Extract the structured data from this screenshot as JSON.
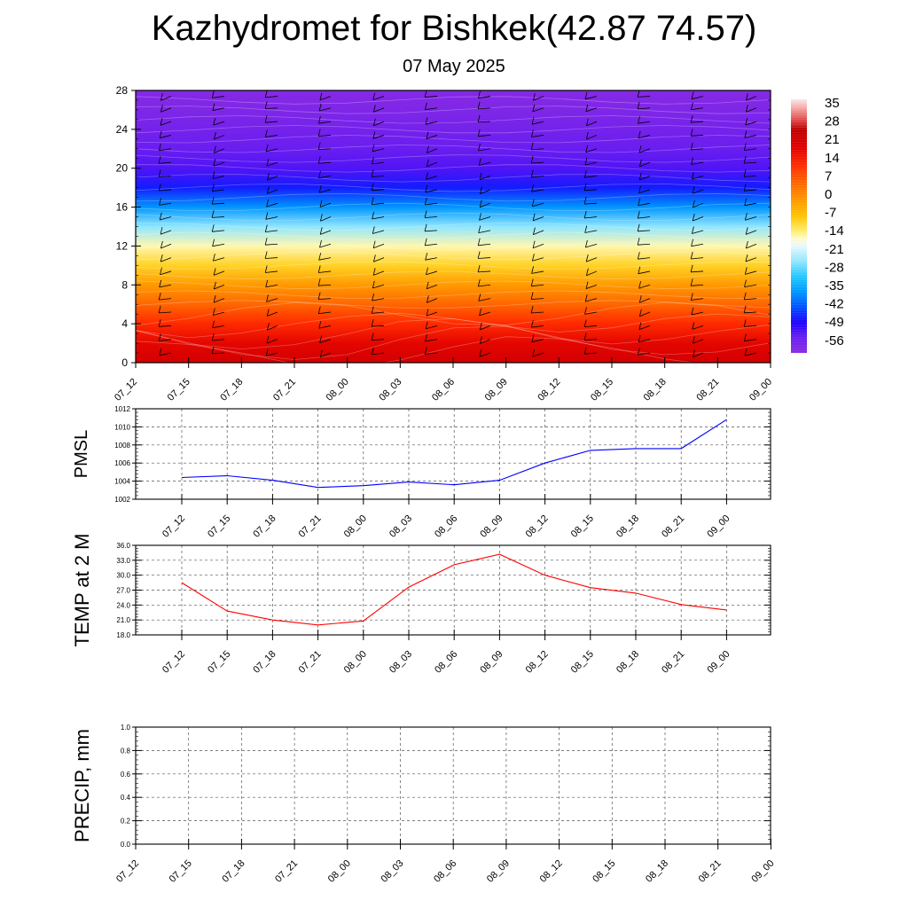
{
  "header": {
    "title": "Kazhydromet for Bishkek(42.87 74.57)",
    "subtitle": "07 May 2025"
  },
  "chart_data": [
    {
      "name": "cross-section",
      "type": "heatmap",
      "times": [
        "07_12",
        "07_15",
        "07_18",
        "07_21",
        "08_00",
        "08_03",
        "08_06",
        "08_09",
        "08_12",
        "08_15",
        "08_18",
        "08_21",
        "09_00"
      ],
      "y_ticks": [
        0,
        4,
        8,
        12,
        16,
        20,
        24,
        28
      ],
      "ylim": [
        0,
        28
      ],
      "colorbar_labels": [
        35,
        28,
        21,
        14,
        7,
        0,
        -7,
        -14,
        -21,
        -28,
        -35,
        -42,
        -49,
        -56
      ],
      "colorbar_range": [
        -60,
        40
      ],
      "color_scale": [
        {
          "v": -60,
          "c": "#8a2be2"
        },
        {
          "v": -54,
          "c": "#6a1ef0"
        },
        {
          "v": -48,
          "c": "#1e00ff"
        },
        {
          "v": -42,
          "c": "#0050ff"
        },
        {
          "v": -36,
          "c": "#0096ff"
        },
        {
          "v": -30,
          "c": "#20c8ff"
        },
        {
          "v": -24,
          "c": "#90e6ff"
        },
        {
          "v": -18,
          "c": "#e6f8ff"
        },
        {
          "v": -15,
          "c": "#fffbd0"
        },
        {
          "v": -12,
          "c": "#ffee70"
        },
        {
          "v": -6,
          "c": "#ffc400"
        },
        {
          "v": 0,
          "c": "#ff9a00"
        },
        {
          "v": 7,
          "c": "#ff6600"
        },
        {
          "v": 14,
          "c": "#ff2a00"
        },
        {
          "v": 21,
          "c": "#e00000"
        },
        {
          "v": 28,
          "c": "#c00000"
        },
        {
          "v": 33,
          "c": "#e86060"
        },
        {
          "v": 37,
          "c": "#f5b0b0"
        },
        {
          "v": 40,
          "c": "#fce6e6"
        }
      ],
      "profile_levels": [
        0,
        2,
        4,
        6,
        8,
        10,
        12,
        14,
        16,
        18,
        20,
        22,
        24,
        26,
        28
      ],
      "profile_values": [
        24,
        20,
        14,
        7,
        0,
        -8,
        -14,
        -24,
        -36,
        -46,
        -52,
        -54,
        -56,
        -58,
        -59
      ],
      "surface_temp": [
        28.5,
        22.8,
        21.0,
        20.0,
        20.8,
        27.6,
        32.1,
        34.2,
        30.0,
        27.5,
        26.4,
        24.1,
        23.0
      ]
    },
    {
      "name": "pmsl",
      "type": "line",
      "ylabel": "PMSL",
      "x": [
        "07_12",
        "07_15",
        "07_18",
        "07_21",
        "08_00",
        "08_03",
        "08_06",
        "08_09",
        "08_12",
        "08_15",
        "08_18",
        "08_21",
        "09_00"
      ],
      "y_ticks": [
        1002,
        1004,
        1006,
        1008,
        1010,
        1012
      ],
      "ylim": [
        1002,
        1012
      ],
      "series": [
        {
          "color": "#0000ff",
          "values": [
            1004.4,
            1004.6,
            1004.1,
            1003.3,
            1003.5,
            1003.9,
            1003.6,
            1004.1,
            1006.0,
            1007.4,
            1007.6,
            1007.6,
            1010.8
          ]
        }
      ],
      "grid": true
    },
    {
      "name": "temp",
      "type": "line",
      "ylabel": "TEMP at 2 M",
      "x": [
        "07_12",
        "07_15",
        "07_18",
        "07_21",
        "08_00",
        "08_03",
        "08_06",
        "08_09",
        "08_12",
        "08_15",
        "08_18",
        "08_21",
        "09_00"
      ],
      "y_ticks": [
        "18.0",
        "21.0",
        "24.0",
        "27.0",
        "30.0",
        "33.0",
        "36.0"
      ],
      "ylim": [
        18,
        36
      ],
      "series": [
        {
          "color": "#ff0000",
          "values": [
            28.5,
            22.8,
            21.0,
            20.0,
            20.8,
            27.6,
            32.1,
            34.2,
            30.0,
            27.5,
            26.4,
            24.1,
            23.0
          ]
        }
      ],
      "grid": true
    },
    {
      "name": "precip",
      "type": "line",
      "ylabel": "PRECIP, mm",
      "x": [
        "07_12",
        "07_15",
        "07_18",
        "07_21",
        "08_00",
        "08_03",
        "08_06",
        "08_09",
        "08_12",
        "08_15",
        "08_18",
        "08_21",
        "09_00"
      ],
      "y_ticks": [
        "0.0",
        "0.2",
        "0.4",
        "0.6",
        "0.8",
        "1.0"
      ],
      "ylim": [
        0,
        1
      ],
      "series": [
        {
          "color": "#006400",
          "values": [
            0,
            0,
            0,
            0,
            0,
            0,
            0,
            0,
            0,
            0,
            0,
            0,
            0
          ]
        }
      ],
      "grid": true
    }
  ]
}
